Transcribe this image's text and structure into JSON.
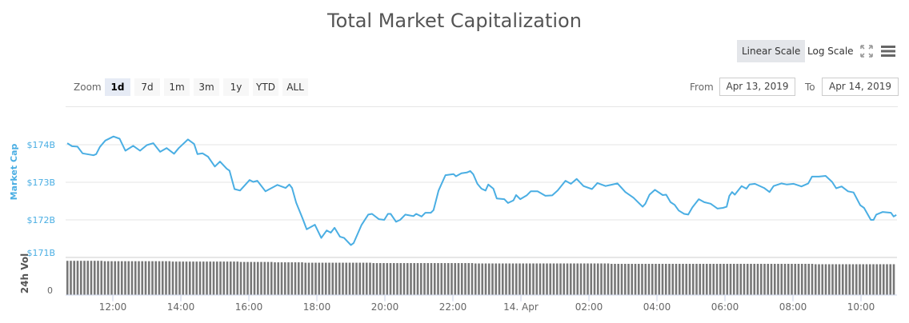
{
  "title": "Total Market Capitalization",
  "toolbar": {
    "linear_scale": "Linear Scale",
    "log_scale": "Log Scale",
    "fullscreen_icon": "fullscreen-icon",
    "menu_icon": "hamburger-menu-icon"
  },
  "range_selector": {
    "zoom_label": "Zoom",
    "buttons": [
      "1d",
      "7d",
      "1m",
      "3m",
      "1y",
      "YTD",
      "ALL"
    ],
    "selected": "1d",
    "from_label": "From",
    "from_value": "Apr 13, 2019",
    "to_label": "To",
    "to_value": "Apr 14, 2019"
  },
  "colors": {
    "line": "#4aaee3",
    "volume": "#777777",
    "grid": "#e6e6e6"
  },
  "chart_data": {
    "type": "line",
    "title": "Total Market Capitalization",
    "x_unit": "hours since Apr 13, 2019 00:00",
    "ylabel": "Market Cap",
    "y_ticks": [
      {
        "value": 174,
        "label": "$174B"
      },
      {
        "value": 173,
        "label": "$173B"
      },
      {
        "value": 172,
        "label": "$172B"
      },
      {
        "value": 171,
        "label": "$171B"
      }
    ],
    "ylim": [
      171,
      174.4
    ],
    "x_ticks": [
      {
        "value": 12,
        "label": "12:00"
      },
      {
        "value": 14,
        "label": "14:00"
      },
      {
        "value": 16,
        "label": "16:00"
      },
      {
        "value": 18,
        "label": "18:00"
      },
      {
        "value": 20,
        "label": "20:00"
      },
      {
        "value": 22,
        "label": "22:00"
      },
      {
        "value": 24,
        "label": "14. Apr"
      },
      {
        "value": 26,
        "label": "02:00"
      },
      {
        "value": 28,
        "label": "04:00"
      },
      {
        "value": 30,
        "label": "06:00"
      },
      {
        "value": 32,
        "label": "08:00"
      },
      {
        "value": 34,
        "label": "10:00"
      }
    ],
    "xlim": [
      10.66,
      35.04
    ],
    "series": [
      {
        "name": "Market Cap (B USD)",
        "points": [
          [
            10.66,
            174.04
          ],
          [
            10.8,
            173.96
          ],
          [
            10.96,
            173.95
          ],
          [
            11.11,
            173.77
          ],
          [
            11.43,
            173.72
          ],
          [
            11.51,
            173.75
          ],
          [
            11.62,
            173.94
          ],
          [
            11.78,
            174.11
          ],
          [
            12.02,
            174.22
          ],
          [
            12.2,
            174.16
          ],
          [
            12.37,
            173.84
          ],
          [
            12.6,
            173.97
          ],
          [
            12.8,
            173.84
          ],
          [
            13.0,
            173.99
          ],
          [
            13.19,
            174.04
          ],
          [
            13.39,
            173.81
          ],
          [
            13.58,
            173.91
          ],
          [
            13.8,
            173.76
          ],
          [
            13.94,
            173.91
          ],
          [
            14.21,
            174.14
          ],
          [
            14.39,
            174.02
          ],
          [
            14.49,
            173.75
          ],
          [
            14.64,
            173.77
          ],
          [
            14.8,
            173.68
          ],
          [
            15.0,
            173.42
          ],
          [
            15.15,
            173.55
          ],
          [
            15.35,
            173.36
          ],
          [
            15.43,
            173.31
          ],
          [
            15.58,
            172.82
          ],
          [
            15.74,
            172.78
          ],
          [
            16.02,
            173.06
          ],
          [
            16.13,
            173.01
          ],
          [
            16.25,
            173.04
          ],
          [
            16.49,
            172.76
          ],
          [
            16.84,
            172.93
          ],
          [
            17.08,
            172.85
          ],
          [
            17.19,
            172.94
          ],
          [
            17.27,
            172.85
          ],
          [
            17.39,
            172.46
          ],
          [
            17.58,
            172.04
          ],
          [
            17.7,
            171.75
          ],
          [
            17.94,
            171.87
          ],
          [
            18.13,
            171.52
          ],
          [
            18.29,
            171.72
          ],
          [
            18.41,
            171.66
          ],
          [
            18.52,
            171.79
          ],
          [
            18.68,
            171.55
          ],
          [
            18.8,
            171.52
          ],
          [
            19.0,
            171.33
          ],
          [
            19.08,
            171.38
          ],
          [
            19.31,
            171.86
          ],
          [
            19.51,
            172.14
          ],
          [
            19.62,
            172.16
          ],
          [
            19.82,
            172.02
          ],
          [
            19.98,
            172.0
          ],
          [
            20.09,
            172.16
          ],
          [
            20.17,
            172.16
          ],
          [
            20.33,
            171.95
          ],
          [
            20.45,
            172.0
          ],
          [
            20.6,
            172.14
          ],
          [
            20.84,
            172.1
          ],
          [
            20.92,
            172.16
          ],
          [
            21.08,
            172.09
          ],
          [
            21.19,
            172.19
          ],
          [
            21.35,
            172.19
          ],
          [
            21.43,
            172.26
          ],
          [
            21.58,
            172.78
          ],
          [
            21.78,
            173.19
          ],
          [
            22.02,
            173.22
          ],
          [
            22.09,
            173.16
          ],
          [
            22.25,
            173.24
          ],
          [
            22.41,
            173.26
          ],
          [
            22.51,
            173.3
          ],
          [
            22.6,
            173.21
          ],
          [
            22.72,
            172.96
          ],
          [
            22.84,
            172.83
          ],
          [
            22.96,
            172.78
          ],
          [
            23.04,
            172.94
          ],
          [
            23.19,
            172.83
          ],
          [
            23.29,
            172.57
          ],
          [
            23.51,
            172.55
          ],
          [
            23.62,
            172.45
          ],
          [
            23.78,
            172.52
          ],
          [
            23.86,
            172.66
          ],
          [
            23.98,
            172.55
          ],
          [
            24.17,
            172.65
          ],
          [
            24.29,
            172.76
          ],
          [
            24.49,
            172.76
          ],
          [
            24.72,
            172.64
          ],
          [
            24.92,
            172.65
          ],
          [
            25.08,
            172.78
          ],
          [
            25.31,
            173.04
          ],
          [
            25.47,
            172.96
          ],
          [
            25.64,
            173.09
          ],
          [
            25.84,
            172.9
          ],
          [
            26.09,
            172.82
          ],
          [
            26.25,
            172.98
          ],
          [
            26.49,
            172.9
          ],
          [
            26.84,
            172.97
          ],
          [
            27.07,
            172.74
          ],
          [
            27.31,
            172.59
          ],
          [
            27.58,
            172.35
          ],
          [
            27.66,
            172.43
          ],
          [
            27.78,
            172.67
          ],
          [
            27.94,
            172.8
          ],
          [
            28.17,
            172.66
          ],
          [
            28.27,
            172.67
          ],
          [
            28.4,
            172.47
          ],
          [
            28.52,
            172.4
          ],
          [
            28.64,
            172.25
          ],
          [
            28.8,
            172.16
          ],
          [
            28.92,
            172.14
          ],
          [
            29.04,
            172.33
          ],
          [
            29.23,
            172.55
          ],
          [
            29.39,
            172.47
          ],
          [
            29.58,
            172.43
          ],
          [
            29.78,
            172.3
          ],
          [
            29.94,
            172.32
          ],
          [
            30.05,
            172.35
          ],
          [
            30.13,
            172.64
          ],
          [
            30.21,
            172.74
          ],
          [
            30.29,
            172.67
          ],
          [
            30.49,
            172.9
          ],
          [
            30.63,
            172.83
          ],
          [
            30.72,
            172.94
          ],
          [
            30.88,
            172.96
          ],
          [
            31.15,
            172.85
          ],
          [
            31.31,
            172.74
          ],
          [
            31.43,
            172.9
          ],
          [
            31.66,
            172.97
          ],
          [
            31.82,
            172.94
          ],
          [
            32.02,
            172.96
          ],
          [
            32.25,
            172.89
          ],
          [
            32.45,
            172.97
          ],
          [
            32.56,
            173.15
          ],
          [
            32.76,
            173.15
          ],
          [
            32.96,
            173.17
          ],
          [
            33.15,
            173.01
          ],
          [
            33.27,
            172.84
          ],
          [
            33.43,
            172.89
          ],
          [
            33.62,
            172.76
          ],
          [
            33.78,
            172.73
          ],
          [
            33.98,
            172.39
          ],
          [
            34.09,
            172.32
          ],
          [
            34.29,
            172.0
          ],
          [
            34.37,
            172.0
          ],
          [
            34.45,
            172.14
          ],
          [
            34.64,
            172.21
          ],
          [
            34.88,
            172.19
          ],
          [
            34.96,
            172.09
          ],
          [
            35.04,
            172.13
          ]
        ]
      }
    ],
    "volume": {
      "label": "24h Vol",
      "y_tick": "0",
      "bars_per_hour": 10,
      "relative_levels_by_hour": [
        0.91,
        0.9,
        0.9,
        0.89,
        0.89,
        0.88,
        0.87,
        0.86,
        0.86,
        0.85,
        0.85,
        0.85,
        0.84,
        0.84,
        0.84,
        0.84,
        0.83,
        0.83,
        0.83,
        0.83,
        0.83,
        0.83,
        0.82,
        0.82,
        0.82
      ]
    }
  }
}
